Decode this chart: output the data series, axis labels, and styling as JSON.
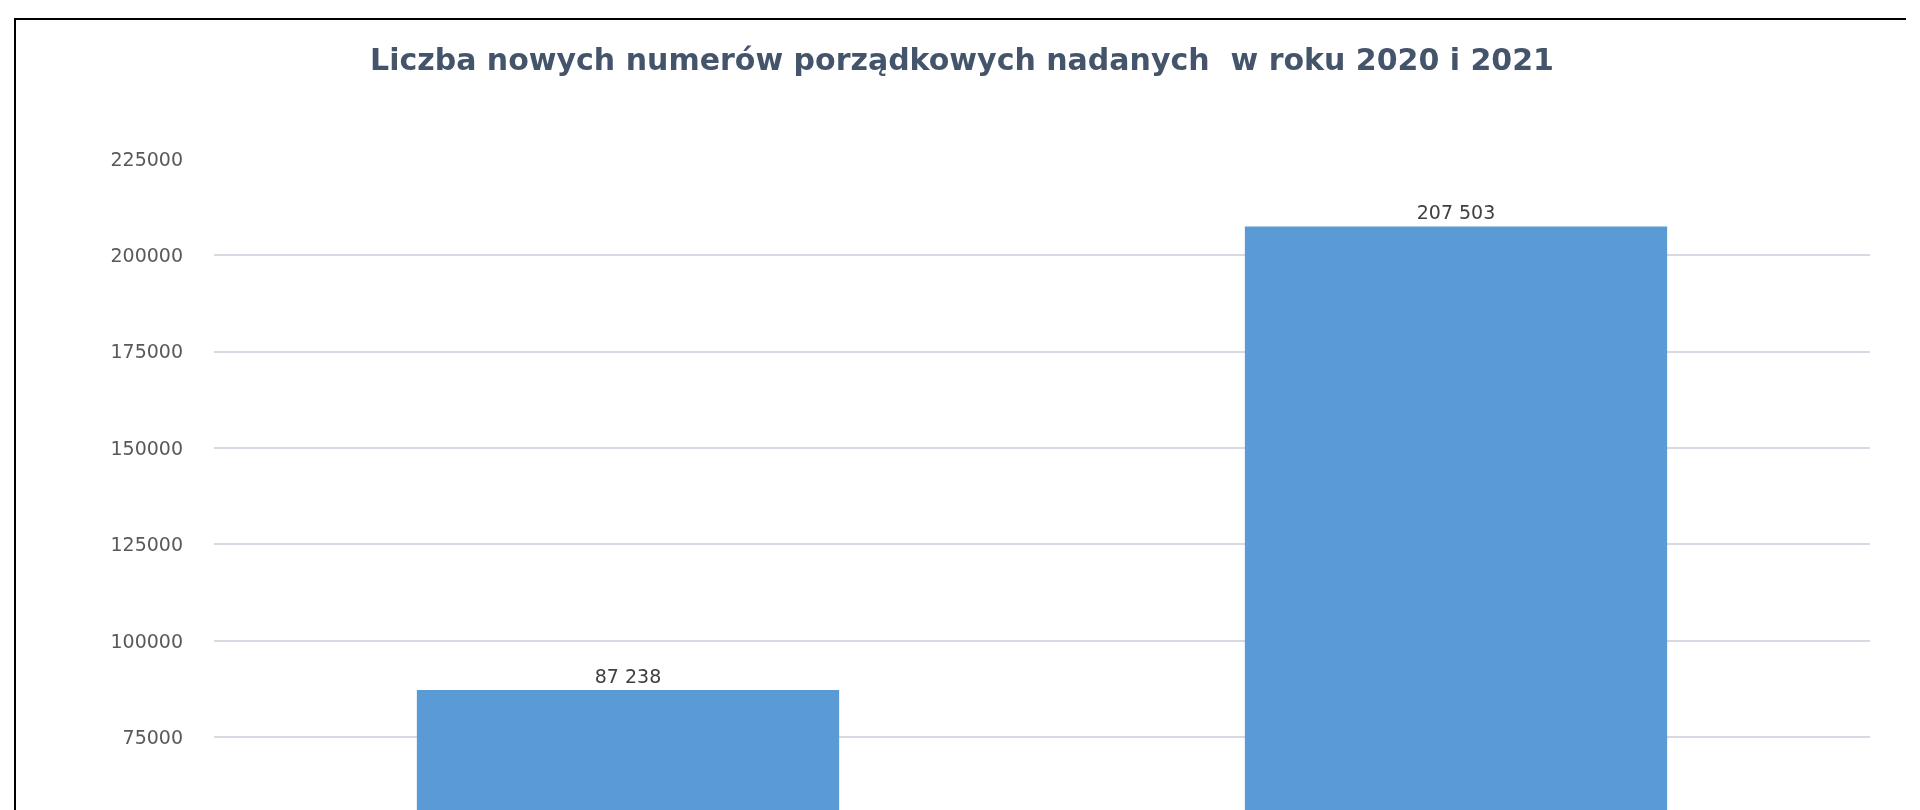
{
  "chart_data": {
    "type": "bar",
    "title": "Liczba nowych numerów porządkowych nadanych  w roku 2020 i 2021",
    "categories": [
      null,
      null
    ],
    "values": [
      87238,
      207503
    ],
    "value_labels": [
      "87 238",
      "207 503"
    ],
    "color": "#5b9bd5",
    "ylim": [
      55600,
      225000
    ],
    "yticks": [
      75000,
      100000,
      125000,
      150000,
      175000,
      200000,
      225000
    ],
    "grid": "y",
    "tick_labels": "y"
  }
}
